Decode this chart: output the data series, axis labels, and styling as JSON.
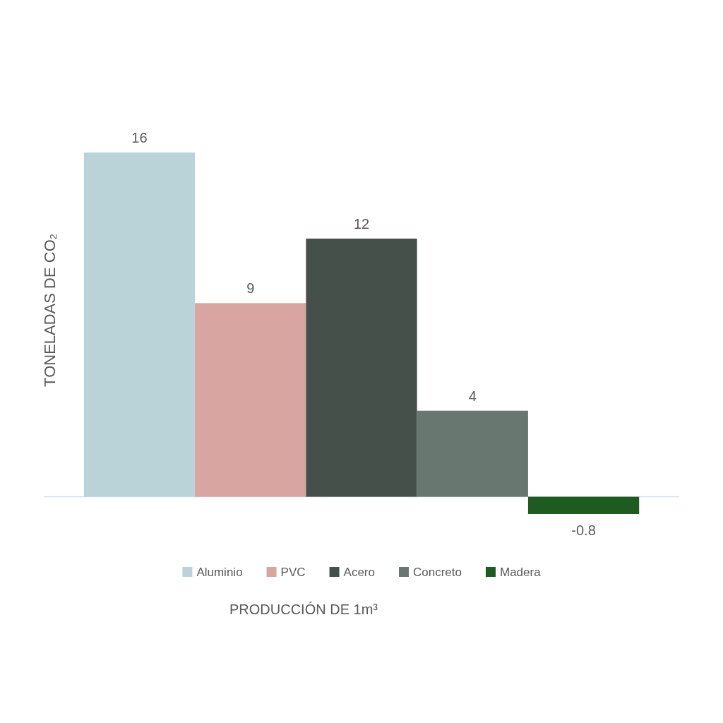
{
  "chart_data": {
    "type": "bar",
    "ylabel": "TONELADAS DE CO₂",
    "annotations": [
      "PRODUCCIÓN DE 1m³"
    ],
    "categories": [
      null
    ],
    "tick_labels": false,
    "data_labels": true,
    "legend": "bottom",
    "series": [
      {
        "name": "Aluminio",
        "color": "#bad3d9",
        "values": [
          16
        ]
      },
      {
        "name": "PVC",
        "color": "#d8a5a1",
        "values": [
          9
        ]
      },
      {
        "name": "Acero",
        "color": "#46504b",
        "values": [
          12
        ]
      },
      {
        "name": "Concreto",
        "color": "#68776f",
        "values": [
          4
        ]
      },
      {
        "name": "Madera",
        "color": "#1f5a20",
        "values": [
          -0.8
        ]
      }
    ]
  }
}
